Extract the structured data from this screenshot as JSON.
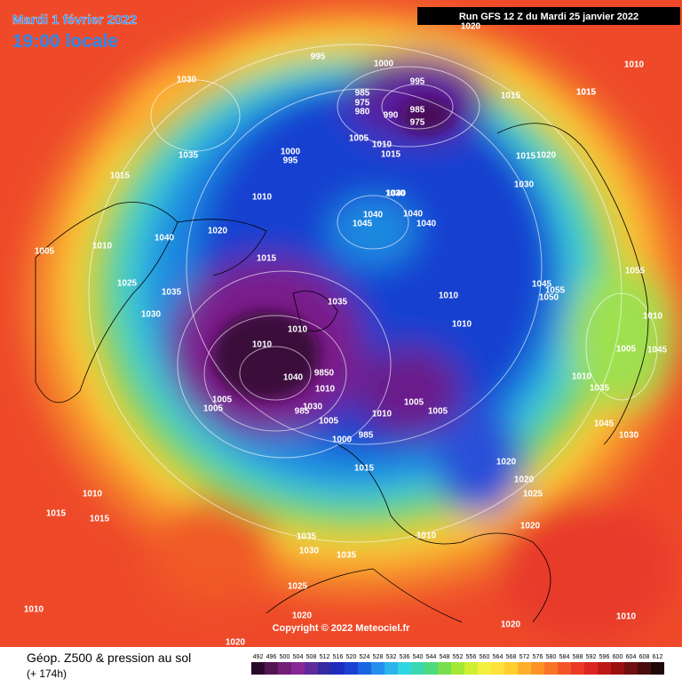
{
  "header": {
    "date": "Mardi 1 février 2022",
    "time": "19:00 locale",
    "run": "Run GFS 12 Z du Mardi 25 janvier 2022"
  },
  "copyright": "Copyright © 2022 Meteociel.fr",
  "legend": {
    "title": "Géop. Z500 & pression au sol",
    "subtitle": "(+ 174h)",
    "scale": [
      492,
      496,
      500,
      504,
      508,
      512,
      516,
      520,
      524,
      528,
      532,
      536,
      540,
      544,
      548,
      552,
      556,
      560,
      564,
      568,
      572,
      576,
      580,
      584,
      588,
      592,
      596,
      600,
      604,
      608,
      612
    ]
  },
  "isobar_labels": [
    "995",
    "1000",
    "995",
    "985",
    "975",
    "980",
    "990",
    "985",
    "975",
    "1030",
    "1035",
    "1005",
    "1010",
    "1015",
    "1000",
    "995",
    "1010",
    "1020",
    "1030",
    "1015",
    "1015",
    "1010",
    "1005",
    "1040",
    "1020",
    "1025",
    "1035",
    "1030",
    "1040",
    "1045",
    "1040",
    "1040",
    "1040",
    "1015",
    "1020",
    "1010",
    "1010",
    "1005",
    "1010",
    "1030",
    "1040",
    "1005",
    "9850",
    "985",
    "1000",
    "985",
    "1005",
    "1010",
    "1005",
    "1005",
    "1010",
    "1035",
    "1030",
    "1045",
    "1055",
    "1050",
    "1055",
    "1010",
    "1005",
    "1045",
    "1010",
    "1035",
    "1045",
    "1030",
    "1015",
    "1020",
    "1020",
    "1025",
    "1020",
    "1015",
    "1010",
    "1015",
    "1015",
    "1010",
    "1035",
    "1030",
    "1035",
    "1025",
    "1020",
    "1020",
    "1015",
    "1010",
    "1015",
    "1010",
    "1010",
    "1010",
    "1020"
  ]
}
